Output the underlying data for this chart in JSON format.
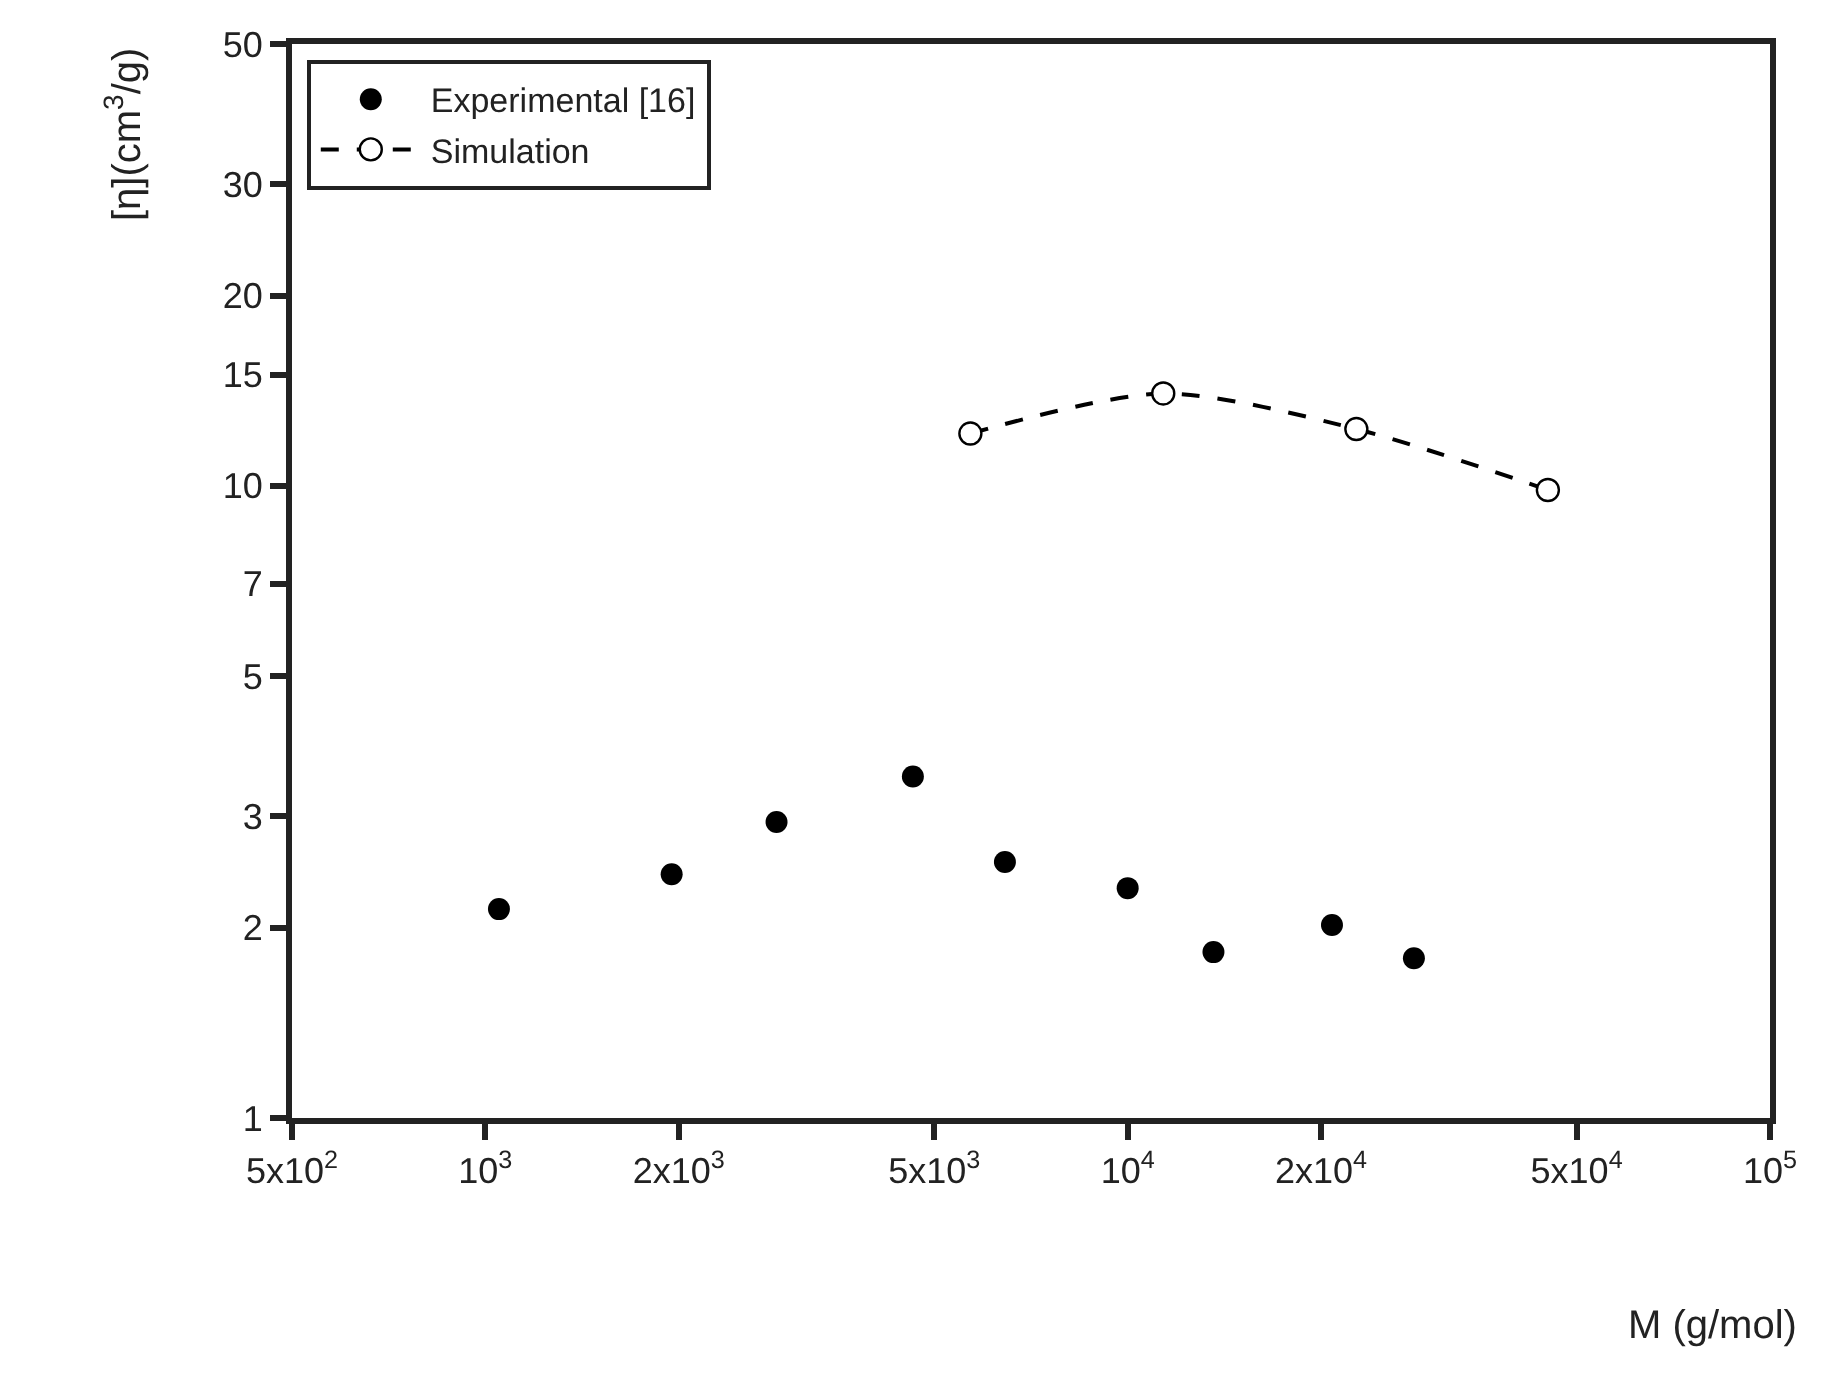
{
  "chart_data": {
    "type": "scatter",
    "xlabel": "M (g/mol)",
    "ylabel": "[η](cm$^{3}$/g)",
    "log": "xy",
    "grid": false,
    "legend": "top left",
    "xlim": [
      500,
      100000
    ],
    "xticks": [
      {
        "value": 500,
        "label": "5x10$^{2}$"
      },
      {
        "value": 1000,
        "label": "10$^{3}$"
      },
      {
        "value": 2000,
        "label": "2x10$^{3}$"
      },
      {
        "value": 5000,
        "label": "5x10$^{3}$"
      },
      {
        "value": 10000,
        "label": "10$^{4}$"
      },
      {
        "value": 20000,
        "label": "2x10$^{4}$"
      },
      {
        "value": 50000,
        "label": "5x10$^{4}$"
      },
      {
        "value": 100000,
        "label": "10$^{5}$"
      }
    ],
    "ylim": [
      1,
      50
    ],
    "yticks": [
      1,
      2,
      3,
      5,
      7,
      10,
      15,
      20,
      30,
      50
    ],
    "series": [
      {
        "name": "Experimental [16]",
        "marker": "circle",
        "color": "#000000",
        "x": [
          1050,
          1950,
          2840,
          4630,
          6440,
          10000,
          13600,
          20800,
          27900
        ],
        "values": [
          2.14,
          2.43,
          2.94,
          3.47,
          2.54,
          2.31,
          1.83,
          2.02,
          1.79
        ]
      },
      {
        "name": "Simulation",
        "type": "line",
        "marker": "circle",
        "line_style": "dashed",
        "color": "#000000",
        "x": [
          5690,
          11360,
          22700,
          45100
        ],
        "values": [
          12.1,
          14.0,
          12.3,
          9.85
        ]
      }
    ]
  }
}
